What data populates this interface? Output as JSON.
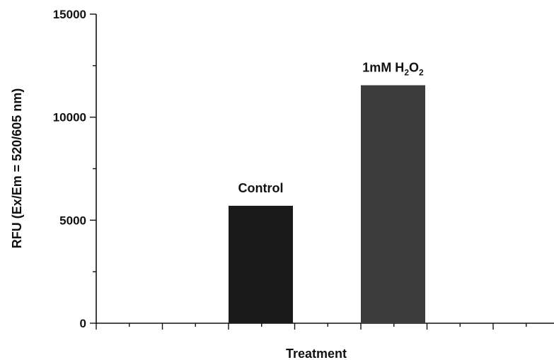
{
  "chart_data": {
    "type": "bar",
    "categories": [
      "Control",
      "1mM H2O2"
    ],
    "values": [
      5700,
      11550
    ],
    "bar_colors": [
      "#1a1a1a",
      "#3c3c3c"
    ],
    "bar_labels": [
      {
        "text": "Control"
      },
      {
        "text": "1mM H",
        "sub1": "2",
        "mid": "O",
        "sub2": "2"
      }
    ],
    "xlabel": "Treatment",
    "ylabel": "RFU (Ex/Em = 520/605 nm)",
    "ylim": [
      0,
      15000
    ],
    "yticks": [
      0,
      5000,
      10000,
      15000
    ],
    "ytick_labels": [
      "0",
      "5000",
      "10000",
      "15000"
    ],
    "grid": false,
    "legend": "none"
  }
}
